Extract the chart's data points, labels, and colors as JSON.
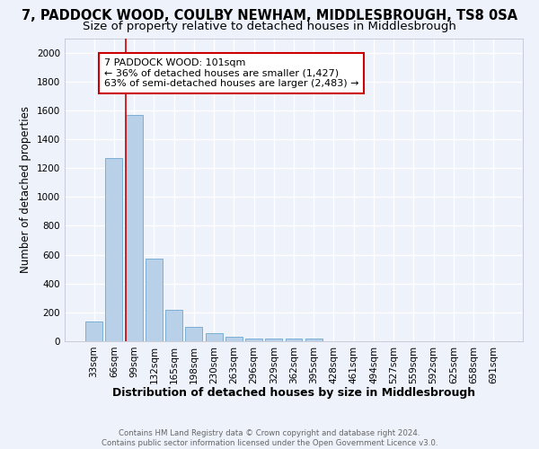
{
  "title": "7, PADDOCK WOOD, COULBY NEWHAM, MIDDLESBROUGH, TS8 0SA",
  "subtitle": "Size of property relative to detached houses in Middlesbrough",
  "xlabel": "Distribution of detached houses by size in Middlesbrough",
  "ylabel": "Number of detached properties",
  "categories": [
    "33sqm",
    "66sqm",
    "99sqm",
    "132sqm",
    "165sqm",
    "198sqm",
    "230sqm",
    "263sqm",
    "296sqm",
    "329sqm",
    "362sqm",
    "395sqm",
    "428sqm",
    "461sqm",
    "494sqm",
    "527sqm",
    "559sqm",
    "592sqm",
    "625sqm",
    "658sqm",
    "691sqm"
  ],
  "values": [
    140,
    1270,
    1570,
    570,
    220,
    100,
    55,
    30,
    20,
    20,
    20,
    20,
    0,
    0,
    0,
    0,
    0,
    0,
    0,
    0,
    0
  ],
  "bar_color": "#b8d0e8",
  "bar_edge_color": "#7aafd4",
  "subject_line_color": "#cc0000",
  "annotation_text": "7 PADDOCK WOOD: 101sqm\n← 36% of detached houses are smaller (1,427)\n63% of semi-detached houses are larger (2,483) →",
  "annotation_box_color": "#ffffff",
  "annotation_box_edge_color": "#cc0000",
  "ylim": [
    0,
    2100
  ],
  "yticks": [
    0,
    200,
    400,
    600,
    800,
    1000,
    1200,
    1400,
    1600,
    1800,
    2000
  ],
  "footer_text": "Contains HM Land Registry data © Crown copyright and database right 2024.\nContains public sector information licensed under the Open Government Licence v3.0.",
  "bg_color": "#eef2fb",
  "grid_color": "#ffffff",
  "title_fontsize": 10.5,
  "subtitle_fontsize": 9.5,
  "tick_fontsize": 7.5,
  "ylabel_fontsize": 8.5,
  "xlabel_fontsize": 9
}
